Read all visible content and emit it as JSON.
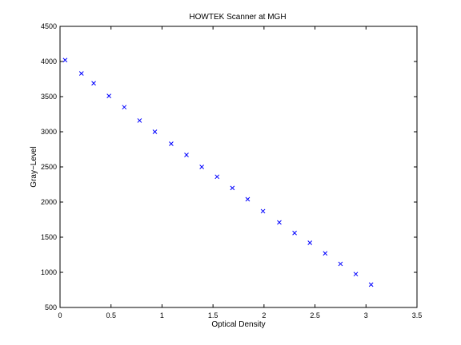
{
  "chart_data": {
    "type": "scatter",
    "title": "HOWTEK Scanner at MGH",
    "xlabel": "Optical Density",
    "ylabel": "Gray−Level",
    "xlim": [
      0,
      3.5
    ],
    "ylim": [
      500,
      4500
    ],
    "xticks": [
      "0",
      "0.5",
      "1",
      "1.5",
      "2",
      "2.5",
      "3",
      "3.5"
    ],
    "yticks": [
      "500",
      "1000",
      "1500",
      "2000",
      "2500",
      "3000",
      "3500",
      "4000",
      "4500"
    ],
    "grid": false,
    "marker": "x",
    "marker_color": "#0000ff",
    "points": [
      {
        "x": 0.05,
        "y": 4020
      },
      {
        "x": 0.21,
        "y": 3830
      },
      {
        "x": 0.33,
        "y": 3690
      },
      {
        "x": 0.48,
        "y": 3510
      },
      {
        "x": 0.63,
        "y": 3350
      },
      {
        "x": 0.78,
        "y": 3160
      },
      {
        "x": 0.93,
        "y": 3000
      },
      {
        "x": 1.09,
        "y": 2830
      },
      {
        "x": 1.24,
        "y": 2670
      },
      {
        "x": 1.39,
        "y": 2500
      },
      {
        "x": 1.54,
        "y": 2360
      },
      {
        "x": 1.69,
        "y": 2200
      },
      {
        "x": 1.84,
        "y": 2040
      },
      {
        "x": 1.99,
        "y": 1870
      },
      {
        "x": 2.15,
        "y": 1710
      },
      {
        "x": 2.3,
        "y": 1560
      },
      {
        "x": 2.45,
        "y": 1420
      },
      {
        "x": 2.6,
        "y": 1270
      },
      {
        "x": 2.75,
        "y": 1120
      },
      {
        "x": 2.9,
        "y": 975
      },
      {
        "x": 3.05,
        "y": 825
      }
    ]
  }
}
